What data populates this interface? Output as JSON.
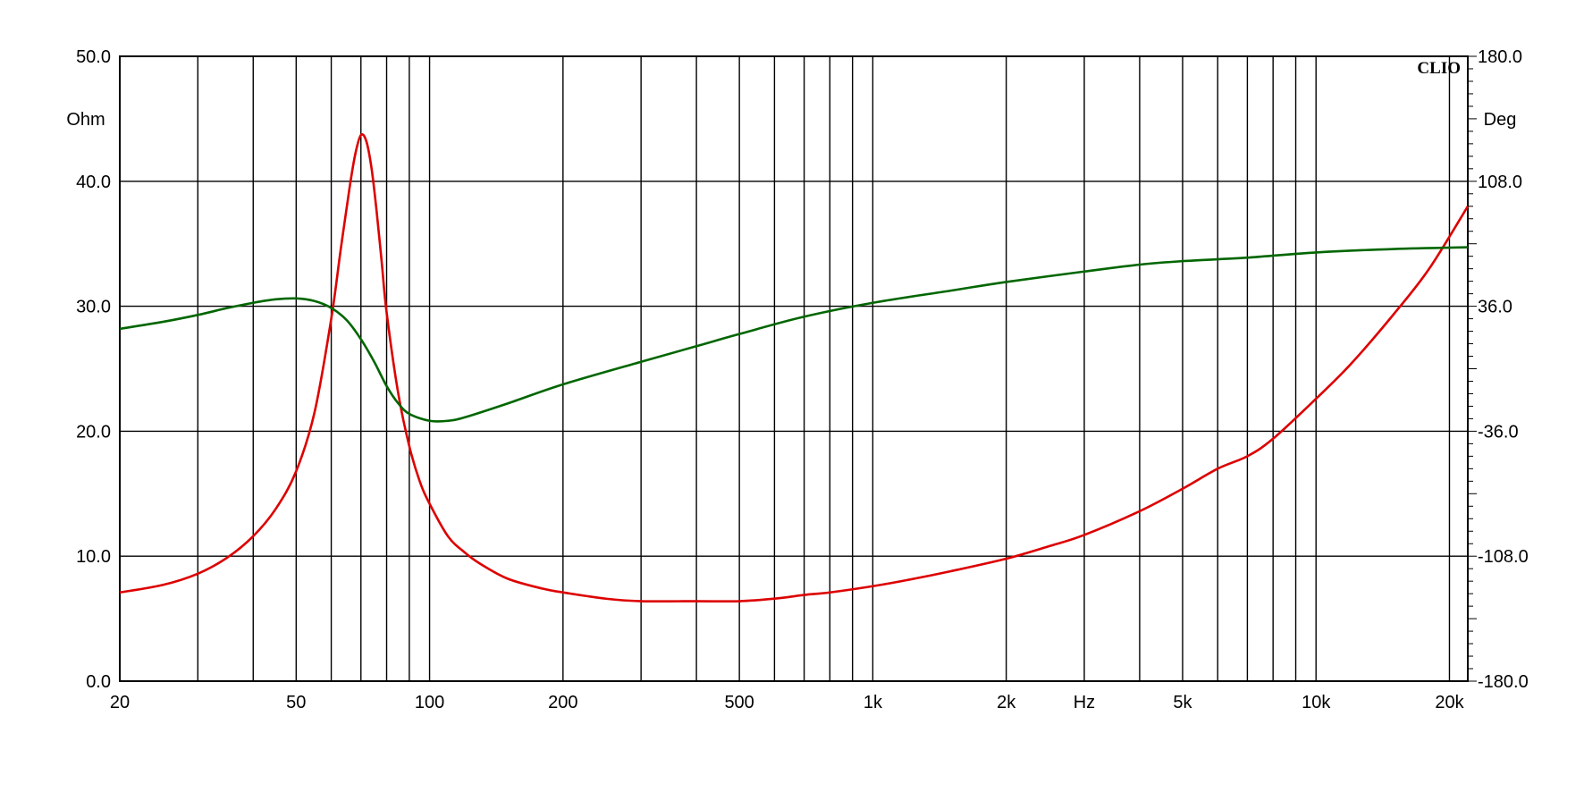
{
  "chart_data": {
    "type": "line",
    "brand_label": "CLIO",
    "x_scale": "log",
    "xlim": [
      20,
      22000
    ],
    "x_ticks": [
      {
        "value": 20,
        "label": "20"
      },
      {
        "value": 50,
        "label": "50"
      },
      {
        "value": 100,
        "label": "100"
      },
      {
        "value": 200,
        "label": "200"
      },
      {
        "value": 500,
        "label": "500"
      },
      {
        "value": 1000,
        "label": "1k"
      },
      {
        "value": 2000,
        "label": "2k"
      },
      {
        "value": 5000,
        "label": "5k"
      },
      {
        "value": 10000,
        "label": "10k"
      },
      {
        "value": 20000,
        "label": "20k"
      }
    ],
    "x_unit_label": "Hz",
    "x_unit_value": 3000,
    "x_gridlines": [
      30,
      40,
      50,
      60,
      70,
      80,
      90,
      100,
      200,
      300,
      400,
      500,
      600,
      700,
      800,
      900,
      1000,
      2000,
      3000,
      4000,
      5000,
      6000,
      7000,
      8000,
      9000,
      10000,
      20000
    ],
    "y_left": {
      "unit_label": "Ohm",
      "ylim": [
        0,
        50
      ],
      "ticks": [
        {
          "value": 0,
          "label": "0.0"
        },
        {
          "value": 10,
          "label": "10.0"
        },
        {
          "value": 20,
          "label": "20.0"
        },
        {
          "value": 30,
          "label": "30.0"
        },
        {
          "value": 40,
          "label": "40.0"
        },
        {
          "value": 50,
          "label": "50.0"
        }
      ]
    },
    "y_right": {
      "unit_label": "Deg",
      "ylim": [
        -180,
        180
      ],
      "ticks": [
        {
          "value": -180,
          "label": "-180.0"
        },
        {
          "value": -108,
          "label": "-108.0"
        },
        {
          "value": -36,
          "label": "-36.0"
        },
        {
          "value": 36,
          "label": "36.0"
        },
        {
          "value": 108,
          "label": "108.0"
        },
        {
          "value": 180,
          "label": "180.0"
        }
      ]
    },
    "grid": true,
    "series": [
      {
        "axis": "left",
        "color": "#dd0000",
        "x": [
          20,
          25,
          30,
          35,
          40,
          45,
          50,
          55,
          60,
          63,
          66,
          68,
          70,
          72,
          74,
          76,
          78,
          80,
          85,
          90,
          95,
          100,
          110,
          120,
          130,
          150,
          180,
          200,
          250,
          300,
          400,
          500,
          600,
          700,
          800,
          1000,
          1200,
          1500,
          2000,
          2500,
          3000,
          4000,
          5000,
          6000,
          7000,
          8000,
          10000,
          12000,
          15000,
          18000,
          22000
        ],
        "y": [
          7.1,
          7.7,
          8.6,
          9.9,
          11.6,
          13.8,
          16.8,
          21.5,
          29.0,
          34.5,
          39.5,
          42.2,
          43.7,
          43.2,
          41.0,
          37.5,
          33.5,
          29.5,
          23.0,
          18.8,
          16.0,
          14.2,
          11.6,
          10.3,
          9.4,
          8.2,
          7.4,
          7.1,
          6.6,
          6.4,
          6.4,
          6.4,
          6.6,
          6.9,
          7.1,
          7.6,
          8.1,
          8.8,
          9.8,
          10.8,
          11.7,
          13.6,
          15.4,
          17.0,
          18.0,
          19.4,
          22.6,
          25.4,
          29.4,
          33.0,
          38.0
        ]
      },
      {
        "axis": "right",
        "color": "#006600",
        "x": [
          20,
          25,
          30,
          35,
          40,
          45,
          50,
          55,
          60,
          65,
          70,
          75,
          80,
          85,
          90,
          100,
          110,
          120,
          150,
          200,
          300,
          400,
          500,
          700,
          1000,
          1500,
          2000,
          3000,
          4000,
          5000,
          7000,
          10000,
          15000,
          22000
        ],
        "y": [
          23,
          27,
          31,
          35,
          38,
          40,
          40.5,
          39,
          35,
          28,
          17,
          4,
          -10,
          -20,
          -26,
          -30,
          -30,
          -28,
          -20,
          -9,
          4,
          13,
          20,
          30,
          38,
          45,
          50,
          56,
          60,
          62,
          64,
          67,
          69,
          70
        ]
      }
    ]
  }
}
